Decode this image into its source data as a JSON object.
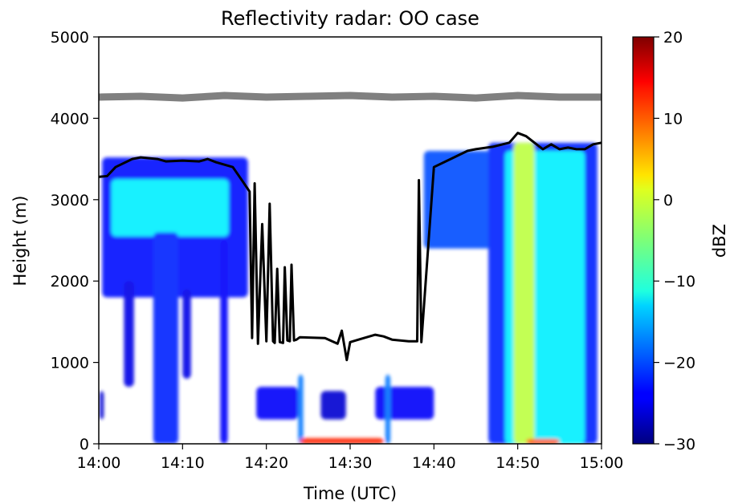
{
  "chart_data": {
    "type": "heatmap",
    "title": "Reflectivity radar: OO case",
    "xlabel": "Time (UTC)",
    "ylabel": "Height (m)",
    "x_ticks": [
      "14:00",
      "14:10",
      "14:20",
      "14:30",
      "14:40",
      "14:50",
      "15:00"
    ],
    "y_ticks": [
      "0",
      "1000",
      "2000",
      "3000",
      "4000",
      "5000"
    ],
    "xlim": [
      0,
      60
    ],
    "ylim": [
      0,
      5000
    ],
    "colorbar": {
      "label": "dBZ",
      "range": [
        -30,
        20
      ],
      "ticks": [
        "20",
        "10",
        "0",
        "−10",
        "−20",
        "−30"
      ],
      "colormap": "jet"
    },
    "series": [
      {
        "kind": "line",
        "color": "#808080",
        "x": [
          0,
          5,
          10,
          15,
          20,
          25,
          30,
          35,
          40,
          45,
          50,
          55,
          60
        ],
        "y": [
          4260,
          4270,
          4250,
          4280,
          4260,
          4270,
          4280,
          4260,
          4270,
          4250,
          4280,
          4260,
          4260
        ]
      },
      {
        "kind": "line",
        "color": "#000000",
        "x": [
          0,
          1,
          2,
          4,
          5,
          7,
          8,
          10,
          12,
          13,
          14,
          16,
          17,
          18,
          18.3,
          18.6,
          19,
          19.5,
          20,
          20.4,
          20.8,
          21,
          21.3,
          21.6,
          22,
          22.2,
          22.5,
          22.8,
          23,
          23.3,
          23.6,
          24,
          27,
          28.5,
          29,
          29.6,
          30,
          31,
          33,
          34,
          35,
          37,
          38,
          38.2,
          38.5,
          40,
          42,
          44,
          45,
          47,
          49,
          50,
          51,
          52,
          53,
          54,
          55,
          56,
          57,
          58,
          59,
          60
        ],
        "y": [
          3280,
          3290,
          3400,
          3500,
          3520,
          3500,
          3470,
          3480,
          3470,
          3500,
          3460,
          3400,
          3250,
          3100,
          1300,
          3200,
          1230,
          2700,
          1260,
          2950,
          1260,
          1240,
          2150,
          1250,
          1240,
          2170,
          1270,
          1260,
          2200,
          1270,
          1280,
          1310,
          1300,
          1230,
          1390,
          1030,
          1250,
          1280,
          1340,
          1320,
          1280,
          1260,
          1260,
          3240,
          1250,
          3400,
          3500,
          3600,
          3620,
          3650,
          3700,
          3820,
          3780,
          3700,
          3620,
          3680,
          3620,
          3640,
          3620,
          3620,
          3680,
          3700
        ]
      }
    ],
    "echo_regions": [
      {
        "t0": 0.4,
        "t1": 17.8,
        "z0": 1800,
        "z1": 3520,
        "dbz": -23
      },
      {
        "t0": 1.5,
        "t1": 15.5,
        "z0": 2550,
        "z1": 3250,
        "dbz": -12
      },
      {
        "t0": 6.5,
        "t1": 9.5,
        "z0": 0,
        "z1": 2600,
        "dbz": -22
      },
      {
        "t0": 14.5,
        "t1": 15.4,
        "z0": 0,
        "z1": 2500,
        "dbz": -24
      },
      {
        "t0": 3.0,
        "t1": 4.2,
        "z0": 700,
        "z1": 2000,
        "dbz": -25
      },
      {
        "t0": 10.0,
        "t1": 11.0,
        "z0": 800,
        "z1": 1900,
        "dbz": -25
      },
      {
        "t0": 0.1,
        "t1": 0.6,
        "z0": 300,
        "z1": 650,
        "dbz": -26
      },
      {
        "t0": 18.8,
        "t1": 23.8,
        "z0": 300,
        "z1": 700,
        "dbz": -24
      },
      {
        "t0": 23.8,
        "t1": 24.4,
        "z0": 0,
        "z1": 850,
        "dbz": -18
      },
      {
        "t0": 26.5,
        "t1": 29.5,
        "z0": 300,
        "z1": 650,
        "dbz": -26
      },
      {
        "t0": 33,
        "t1": 40,
        "z0": 300,
        "z1": 700,
        "dbz": -24
      },
      {
        "t0": 34.2,
        "t1": 34.8,
        "z0": 0,
        "z1": 850,
        "dbz": -18
      },
      {
        "t0": 38.8,
        "t1": 48,
        "z0": 2400,
        "z1": 3600,
        "dbz": -20
      },
      {
        "t0": 46.5,
        "t1": 59.5,
        "z0": 0,
        "z1": 3700,
        "dbz": -22
      },
      {
        "t0": 48.5,
        "t1": 58,
        "z0": 0,
        "z1": 3600,
        "dbz": -12
      },
      {
        "t0": 49.5,
        "t1": 52,
        "z0": 0,
        "z1": 3700,
        "dbz": -2
      },
      {
        "t0": 24,
        "t1": 34,
        "z0": 0,
        "z1": 70,
        "dbz": 12
      },
      {
        "t0": 51,
        "t1": 55,
        "z0": 0,
        "z1": 60,
        "dbz": 10
      }
    ]
  }
}
